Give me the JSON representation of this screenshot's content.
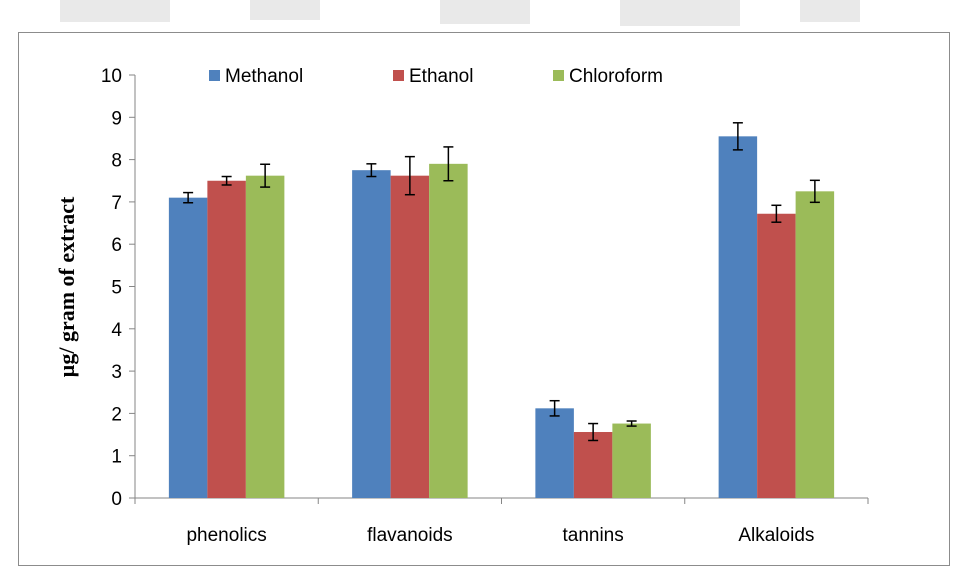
{
  "chart_data": {
    "type": "bar",
    "title": "",
    "xlabel": "",
    "ylabel": "µg/ gram of extract",
    "ylim": [
      0,
      10
    ],
    "yticks": [
      0,
      1,
      2,
      3,
      4,
      5,
      6,
      7,
      8,
      9,
      10
    ],
    "categories": [
      "phenolics",
      "flavanoids",
      "tannins",
      "Alkaloids"
    ],
    "series": [
      {
        "name": "Methanol",
        "color": "#4F81BD",
        "values": [
          7.1,
          7.75,
          2.12,
          8.55
        ],
        "errors": [
          0.12,
          0.15,
          0.18,
          0.32
        ]
      },
      {
        "name": "Ethanol",
        "color": "#C0504D",
        "values": [
          7.5,
          7.62,
          1.56,
          6.72
        ],
        "errors": [
          0.1,
          0.45,
          0.2,
          0.2
        ]
      },
      {
        "name": "Chloroform",
        "color": "#9BBB59",
        "values": [
          7.62,
          7.9,
          1.76,
          7.25
        ],
        "errors": [
          0.27,
          0.4,
          0.06,
          0.26
        ]
      }
    ],
    "legend_position": "top",
    "grid": false
  }
}
